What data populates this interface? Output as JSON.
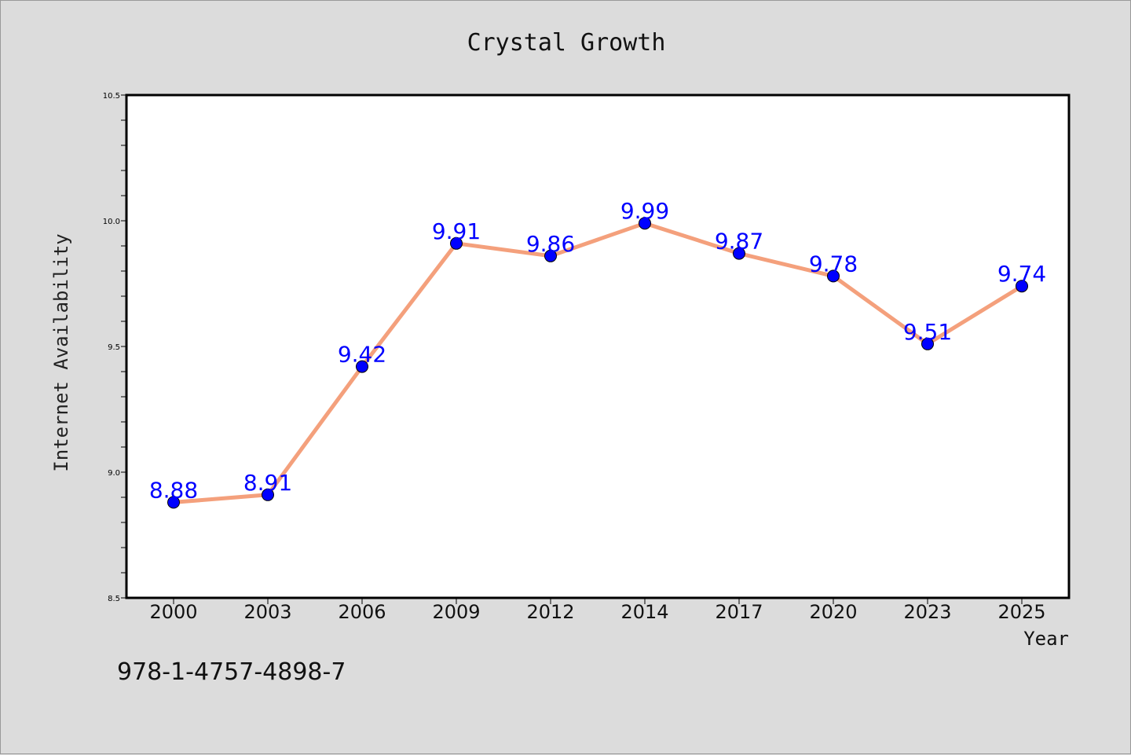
{
  "chart_data": {
    "type": "line",
    "title": "Crystal Growth",
    "xlabel": "Year",
    "ylabel": "Internet Availability",
    "categories": [
      "2000",
      "2003",
      "2006",
      "2009",
      "2012",
      "2014",
      "2017",
      "2020",
      "2023",
      "2025"
    ],
    "series": [
      {
        "values": [
          8.88,
          8.91,
          9.42,
          9.91,
          9.86,
          9.99,
          9.87,
          9.78,
          9.51,
          9.74
        ],
        "line_color": "#f4a07c",
        "marker_color": "#0000ff"
      }
    ],
    "data_labels": [
      "8.88",
      "8.91",
      "9.42",
      "9.91",
      "9.86",
      "9.99",
      "9.87",
      "9.78",
      "9.51",
      "9.74"
    ],
    "data_label_color": "#0000ff",
    "ylim": [
      8.5,
      10.5
    ],
    "yticks": [
      "8.5",
      "9.0",
      "9.5",
      "10.0",
      "10.5"
    ],
    "grid": false,
    "legend": "none"
  },
  "footer_text": "978-1-4757-4898-7"
}
